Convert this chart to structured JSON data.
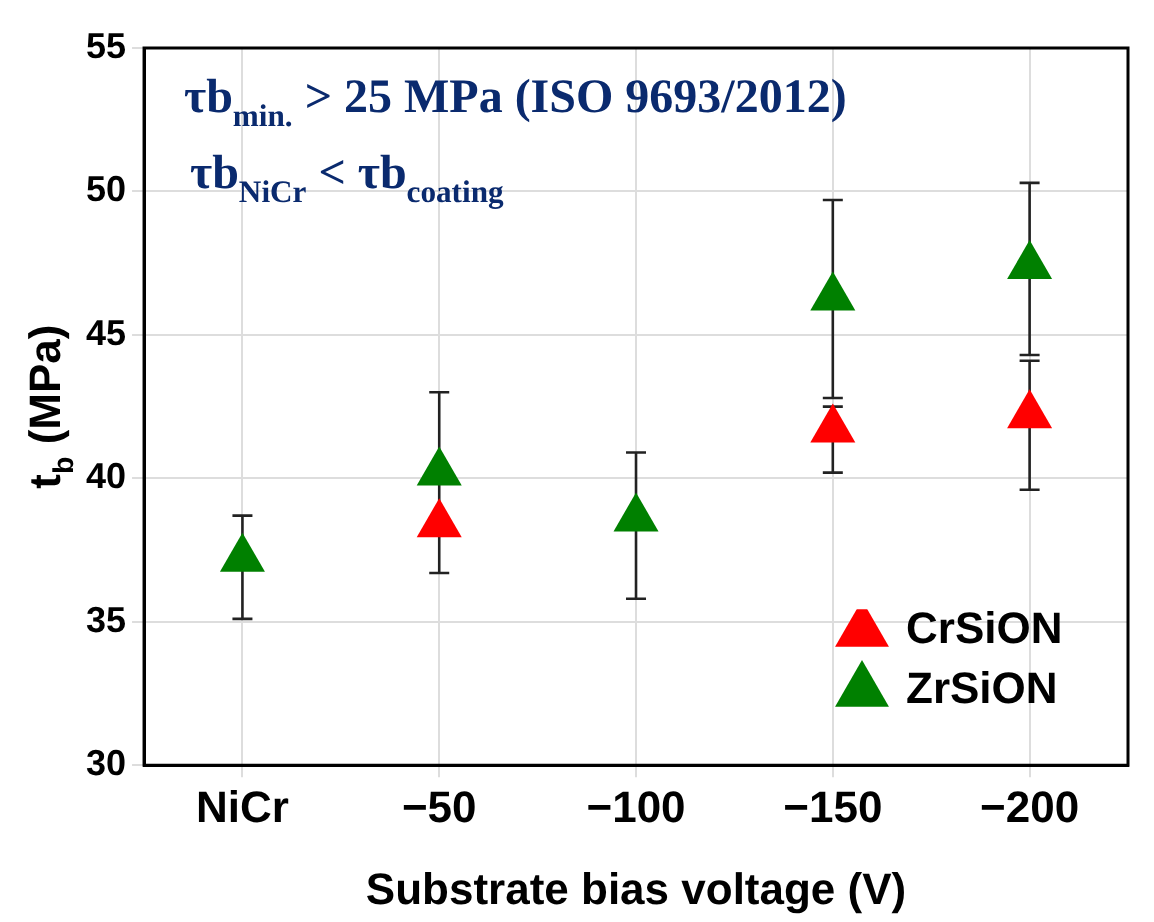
{
  "chart_data": {
    "type": "scatter",
    "xlabel": "Substrate bias voltage (V)",
    "ylabel": "t$_{b}$ (MPa)",
    "categories": [
      "NiCr",
      "−50",
      "−100",
      "−150",
      "−200"
    ],
    "ylim": [
      30,
      55
    ],
    "yticks": [
      30,
      35,
      40,
      45,
      50,
      55
    ],
    "grid": true,
    "legend": "bottom right",
    "marker": "triangle",
    "annotations": [
      "τb$_{min.}$ > 25 MPa (ISO 9693/2012)",
      "τb$_{NiCr}$ < τb$_{coating}$"
    ],
    "series": [
      {
        "name": "CrSiON",
        "color": "#ff0000",
        "values": [
          null,
          38.4,
          null,
          41.7,
          42.2
        ],
        "errors": [
          null,
          null,
          null,
          [
            40.2,
            42.5
          ],
          [
            39.6,
            44.1
          ]
        ]
      },
      {
        "name": "ZrSiON",
        "color": "#008000",
        "values": [
          37.2,
          40.2,
          38.6,
          46.3,
          47.4
        ],
        "errors": [
          [
            35.1,
            38.7
          ],
          [
            36.7,
            43.0
          ],
          [
            35.8,
            40.9
          ],
          [
            42.8,
            49.7
          ],
          [
            44.3,
            50.3
          ]
        ]
      }
    ]
  }
}
